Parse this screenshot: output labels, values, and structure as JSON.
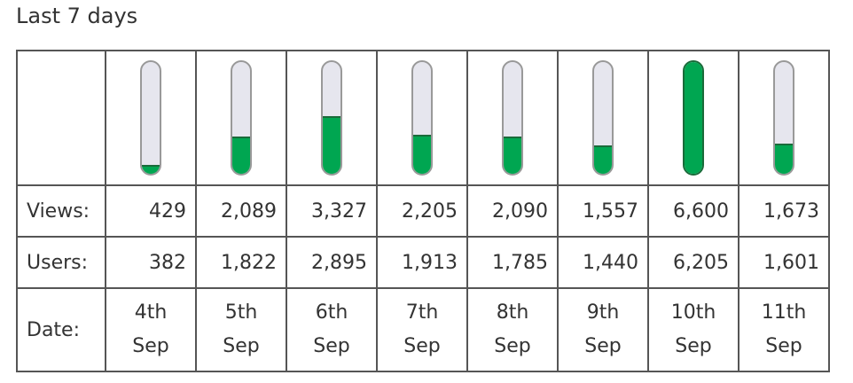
{
  "table": {
    "title": "Last 7 days",
    "row_labels": [
      "Views:",
      "Users:",
      "Date:"
    ],
    "views": {
      "values": [
        429,
        2089,
        3327,
        2205,
        2090,
        1557,
        6600,
        1673
      ],
      "value_labels": [
        "429",
        "2,089",
        "3,327",
        "2,205",
        "2,090",
        "1,557",
        "6,600",
        "1,673"
      ]
    },
    "users": [
      "382",
      "1,822",
      "2,895",
      "1,913",
      "1,785",
      "1,440",
      "6,205",
      "1,601"
    ],
    "dates": [
      "4th Sep",
      "5th Sep",
      "6th Sep",
      "7th Sep",
      "8th Sep",
      "9th Sep",
      "10th Sep",
      "11th Sep"
    ]
  }
}
